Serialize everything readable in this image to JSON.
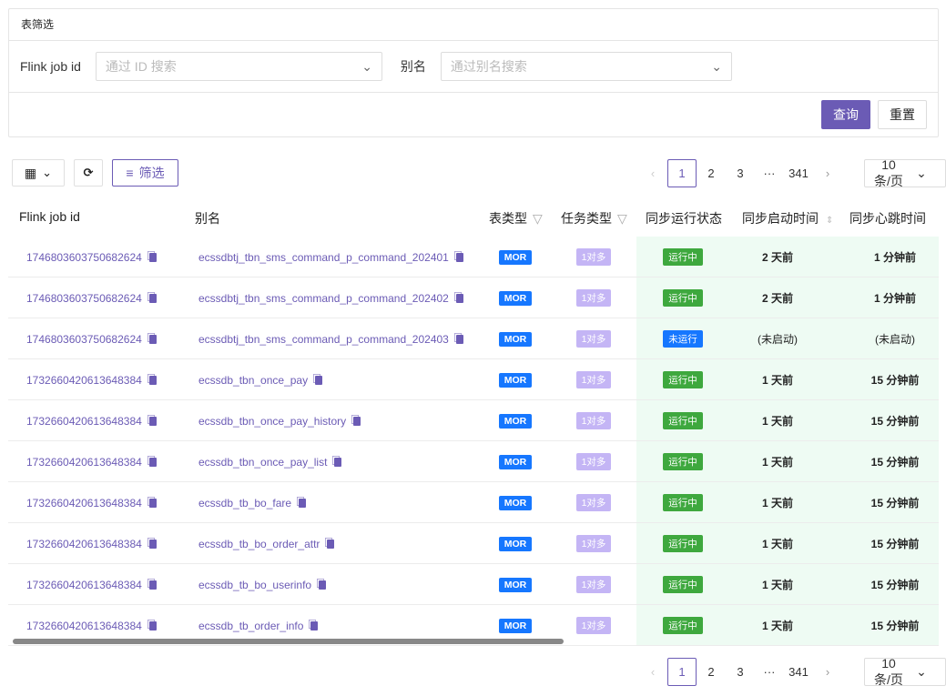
{
  "filter": {
    "title": "表筛选",
    "job_label": "Flink job id",
    "job_placeholder": "通过 ID 搜索",
    "alias_label": "别名",
    "alias_placeholder": "通过别名搜索",
    "query": "查询",
    "reset": "重置"
  },
  "toolbar": {
    "filter": "筛选"
  },
  "pager": {
    "prev": "‹",
    "pages": [
      "1",
      "2",
      "3",
      "···",
      "341"
    ],
    "next": "›",
    "size": "10条/页"
  },
  "colors": {
    "accent": "#6b5bb5",
    "mor": "#1677ff",
    "task": "#c4b5f5",
    "running": "#3ea83e",
    "stopped": "#1677ff"
  },
  "columns": [
    "Flink job id",
    "别名",
    "表类型",
    "任务类型",
    "同步运行状态",
    "同步启动时间",
    "同步心跳时间"
  ],
  "rows": [
    {
      "id": "1746803603750682624",
      "alias": "ecssdbtj_tbn_sms_command_p_command_202401",
      "type": "MOR",
      "task": "1对多",
      "status": "运行中",
      "start": "2 天前",
      "beat": "1 分钟前"
    },
    {
      "id": "1746803603750682624",
      "alias": "ecssdbtj_tbn_sms_command_p_command_202402",
      "type": "MOR",
      "task": "1对多",
      "status": "运行中",
      "start": "2 天前",
      "beat": "1 分钟前"
    },
    {
      "id": "1746803603750682624",
      "alias": "ecssdbtj_tbn_sms_command_p_command_202403",
      "type": "MOR",
      "task": "1对多",
      "status": "未运行",
      "start": "(未启动)",
      "beat": "(未启动)"
    },
    {
      "id": "1732660420613648384",
      "alias": "ecssdb_tbn_once_pay",
      "type": "MOR",
      "task": "1对多",
      "status": "运行中",
      "start": "1 天前",
      "beat": "15 分钟前"
    },
    {
      "id": "1732660420613648384",
      "alias": "ecssdb_tbn_once_pay_history",
      "type": "MOR",
      "task": "1对多",
      "status": "运行中",
      "start": "1 天前",
      "beat": "15 分钟前"
    },
    {
      "id": "1732660420613648384",
      "alias": "ecssdb_tbn_once_pay_list",
      "type": "MOR",
      "task": "1对多",
      "status": "运行中",
      "start": "1 天前",
      "beat": "15 分钟前"
    },
    {
      "id": "1732660420613648384",
      "alias": "ecssdb_tb_bo_fare",
      "type": "MOR",
      "task": "1对多",
      "status": "运行中",
      "start": "1 天前",
      "beat": "15 分钟前"
    },
    {
      "id": "1732660420613648384",
      "alias": "ecssdb_tb_bo_order_attr",
      "type": "MOR",
      "task": "1对多",
      "status": "运行中",
      "start": "1 天前",
      "beat": "15 分钟前"
    },
    {
      "id": "1732660420613648384",
      "alias": "ecssdb_tb_bo_userinfo",
      "type": "MOR",
      "task": "1对多",
      "status": "运行中",
      "start": "1 天前",
      "beat": "15 分钟前"
    },
    {
      "id": "1732660420613648384",
      "alias": "ecssdb_tb_order_info",
      "type": "MOR",
      "task": "1对多",
      "status": "运行中",
      "start": "1 天前",
      "beat": "15 分钟前"
    }
  ]
}
